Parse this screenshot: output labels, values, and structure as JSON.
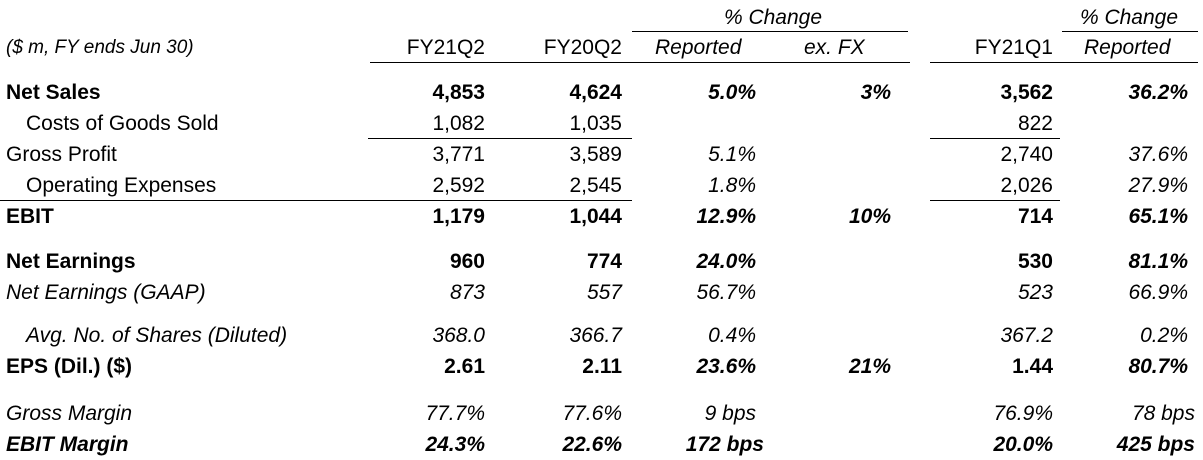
{
  "header": {
    "units": "($ m, FY ends Jun 30)",
    "group1": "% Change",
    "group2": "% Change",
    "columns": [
      "FY21Q2",
      "FY20Q2",
      "Reported",
      "ex. FX",
      "FY21Q1",
      "Reported"
    ]
  },
  "rows": [
    {
      "label": "Net Sales",
      "values": [
        "4,853",
        "4,624",
        "5.0%",
        "3%",
        "3,562",
        "36.2%"
      ]
    },
    {
      "label": "Costs of Goods Sold",
      "values": [
        "1,082",
        "1,035",
        "",
        "",
        "822",
        ""
      ]
    },
    {
      "label": "Gross Profit",
      "values": [
        "3,771",
        "3,589",
        "5.1%",
        "",
        "2,740",
        "37.6%"
      ]
    },
    {
      "label": "Operating Expenses",
      "values": [
        "2,592",
        "2,545",
        "1.8%",
        "",
        "2,026",
        "27.9%"
      ]
    },
    {
      "label": "EBIT",
      "values": [
        "1,179",
        "1,044",
        "12.9%",
        "10%",
        "714",
        "65.1%"
      ]
    },
    {
      "label": "Net Earnings",
      "values": [
        "960",
        "774",
        "24.0%",
        "",
        "530",
        "81.1%"
      ]
    },
    {
      "label": "Net Earnings (GAAP)",
      "values": [
        "873",
        "557",
        "56.7%",
        "",
        "523",
        "66.9%"
      ]
    },
    {
      "label": "Avg. No. of Shares (Diluted)",
      "values": [
        "368.0",
        "366.7",
        "0.4%",
        "",
        "367.2",
        "0.2%"
      ]
    },
    {
      "label": "EPS (Dil.) ($)",
      "values": [
        "2.61",
        "2.11",
        "23.6%",
        "21%",
        "1.44",
        "80.7%"
      ]
    },
    {
      "label": "Gross Margin",
      "values": [
        "77.7%",
        "77.6%",
        "9 bps",
        "",
        "76.9%",
        "78 bps"
      ]
    },
    {
      "label": "EBIT Margin",
      "values": [
        "24.3%",
        "22.6%",
        "172 bps",
        "",
        "20.0%",
        "425 bps"
      ]
    }
  ]
}
